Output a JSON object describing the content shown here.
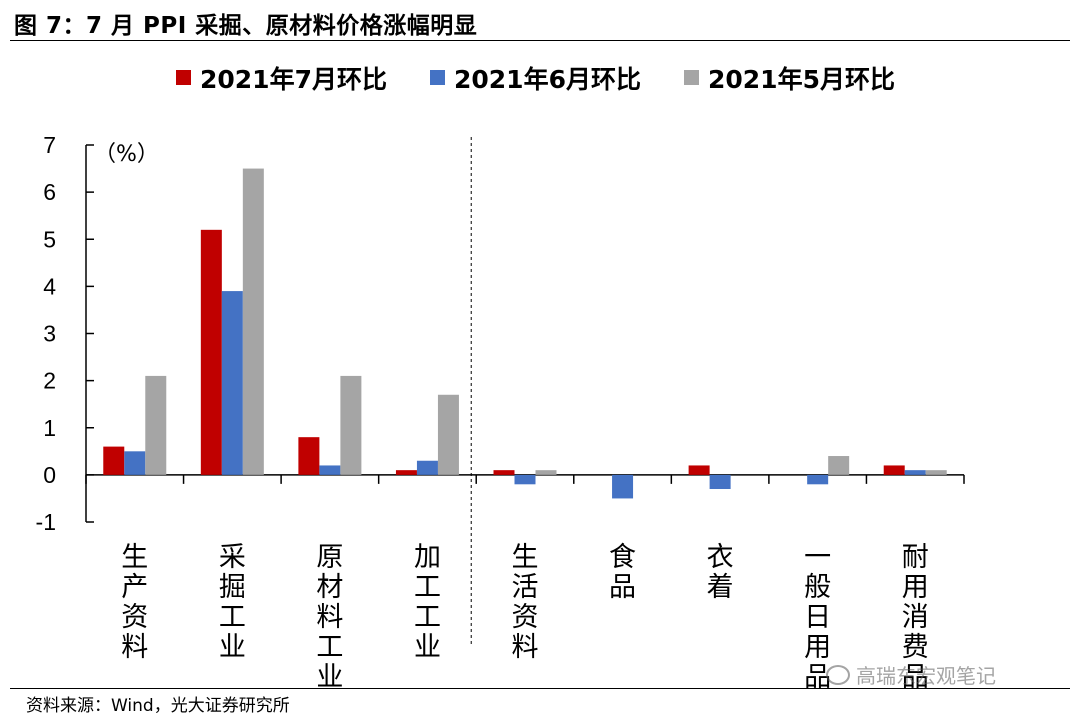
{
  "page": {
    "title": "图 7：7 月 PPI 采掘、原材料价格涨幅明显",
    "source": "资料来源：Wind，光大证券研究所",
    "watermark": "高瑞东宏观笔记",
    "watermark_icon": "wechat-icon"
  },
  "chart_data": {
    "type": "bar",
    "title": "",
    "xlabel": "",
    "ylabel": "（%）",
    "ylim": [
      -1,
      7
    ],
    "yticks": [
      "-1",
      "0",
      "1",
      "2",
      "3",
      "4",
      "5",
      "6",
      "7"
    ],
    "legend_position": "top",
    "grid": false,
    "categories": [
      "生产资料",
      "采掘工业",
      "原材料工业",
      "加工工业",
      "生活资料",
      "食品",
      "衣着",
      "一般日用品",
      "耐用消费品"
    ],
    "divider_after_category": 4,
    "series": [
      {
        "name": "2021年7月环比",
        "color": "#C00000",
        "values": [
          0.6,
          5.2,
          0.8,
          0.1,
          0.1,
          0.0,
          0.2,
          0.0,
          0.2
        ]
      },
      {
        "name": "2021年6月环比",
        "color": "#4472C4",
        "values": [
          0.5,
          3.9,
          0.2,
          0.3,
          -0.2,
          -0.5,
          -0.3,
          -0.2,
          0.1
        ]
      },
      {
        "name": "2021年5月环比",
        "color": "#A5A5A5",
        "values": [
          2.1,
          6.5,
          2.1,
          1.7,
          0.1,
          0.0,
          0.0,
          0.4,
          0.1
        ]
      }
    ]
  }
}
